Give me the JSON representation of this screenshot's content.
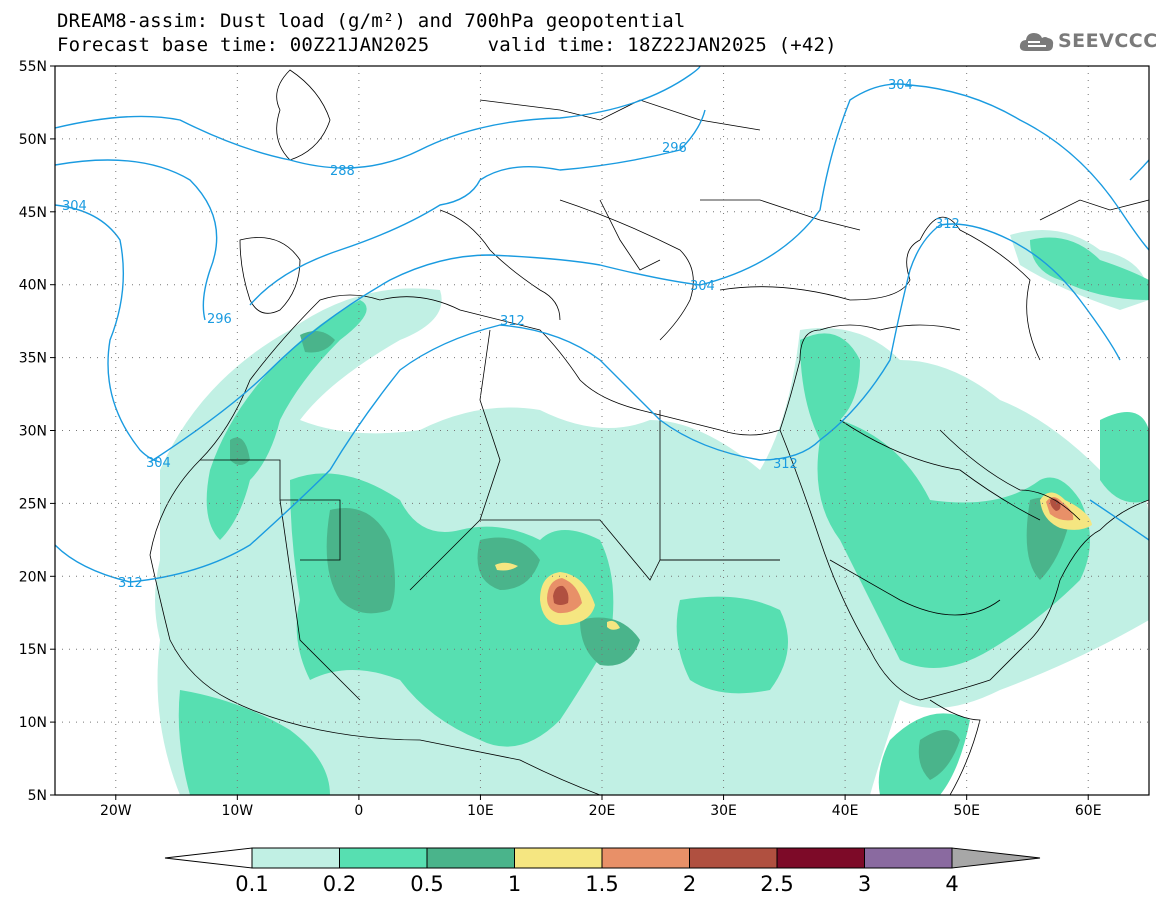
{
  "title": {
    "line1": "DREAM8-assim: Dust load (g/m²) and 700hPa geopotential",
    "line2": "Forecast base time: 00Z21JAN2025     valid time: 18Z22JAN2025 (+42)"
  },
  "logo": {
    "text": "SEEVCCC",
    "icon": "cloud-logo-icon"
  },
  "axes": {
    "lat_labels": [
      "55N",
      "50N",
      "45N",
      "40N",
      "35N",
      "30N",
      "25N",
      "20N",
      "15N",
      "10N",
      "5N"
    ],
    "lon_labels": [
      "20W",
      "10W",
      "0",
      "10E",
      "20E",
      "30E",
      "40E",
      "50E",
      "60E"
    ],
    "lat_values": [
      55,
      50,
      45,
      40,
      35,
      30,
      25,
      20,
      15,
      10,
      5
    ],
    "lon_values": [
      -20,
      -10,
      0,
      10,
      20,
      30,
      40,
      50,
      60
    ]
  },
  "contours": {
    "color": "#1a9be0",
    "labels": [
      "288",
      "296",
      "296",
      "304",
      "304",
      "304",
      "304",
      "312",
      "312",
      "312",
      "312"
    ]
  },
  "colorbar": {
    "labels": [
      "0.1",
      "0.2",
      "0.5",
      "1",
      "1.5",
      "2",
      "2.5",
      "3",
      "4"
    ],
    "colors": [
      "#c1f0e4",
      "#57dfb1",
      "#4ab48b",
      "#f5e681",
      "#e89068",
      "#b05040",
      "#7d0a28",
      "#8a6aa0"
    ],
    "under_color": "#ffffff",
    "over_color": "#a7a7a7"
  }
}
